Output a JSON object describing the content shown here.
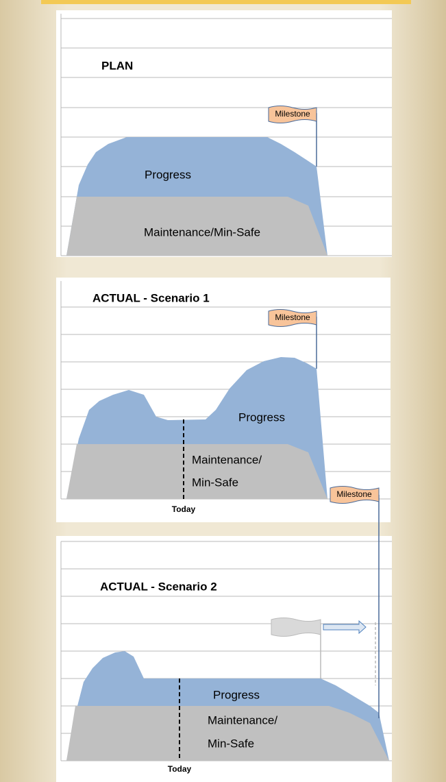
{
  "panels": [
    {
      "title": "PLAN",
      "progress": "Progress",
      "maintenance": [
        "Maintenance/Min-Safe"
      ],
      "milestone": "Milestone"
    },
    {
      "title": "ACTUAL - Scenario 1",
      "progress": "Progress",
      "maintenance": [
        "Maintenance/",
        "Min-Safe"
      ],
      "milestone": "Milestone",
      "today": "Today"
    },
    {
      "title": "ACTUAL - Scenario 2",
      "progress": "Progress",
      "maintenance": [
        "Maintenance/",
        "Min-Safe"
      ],
      "milestone": "Milestone",
      "today": "Today"
    }
  ]
}
